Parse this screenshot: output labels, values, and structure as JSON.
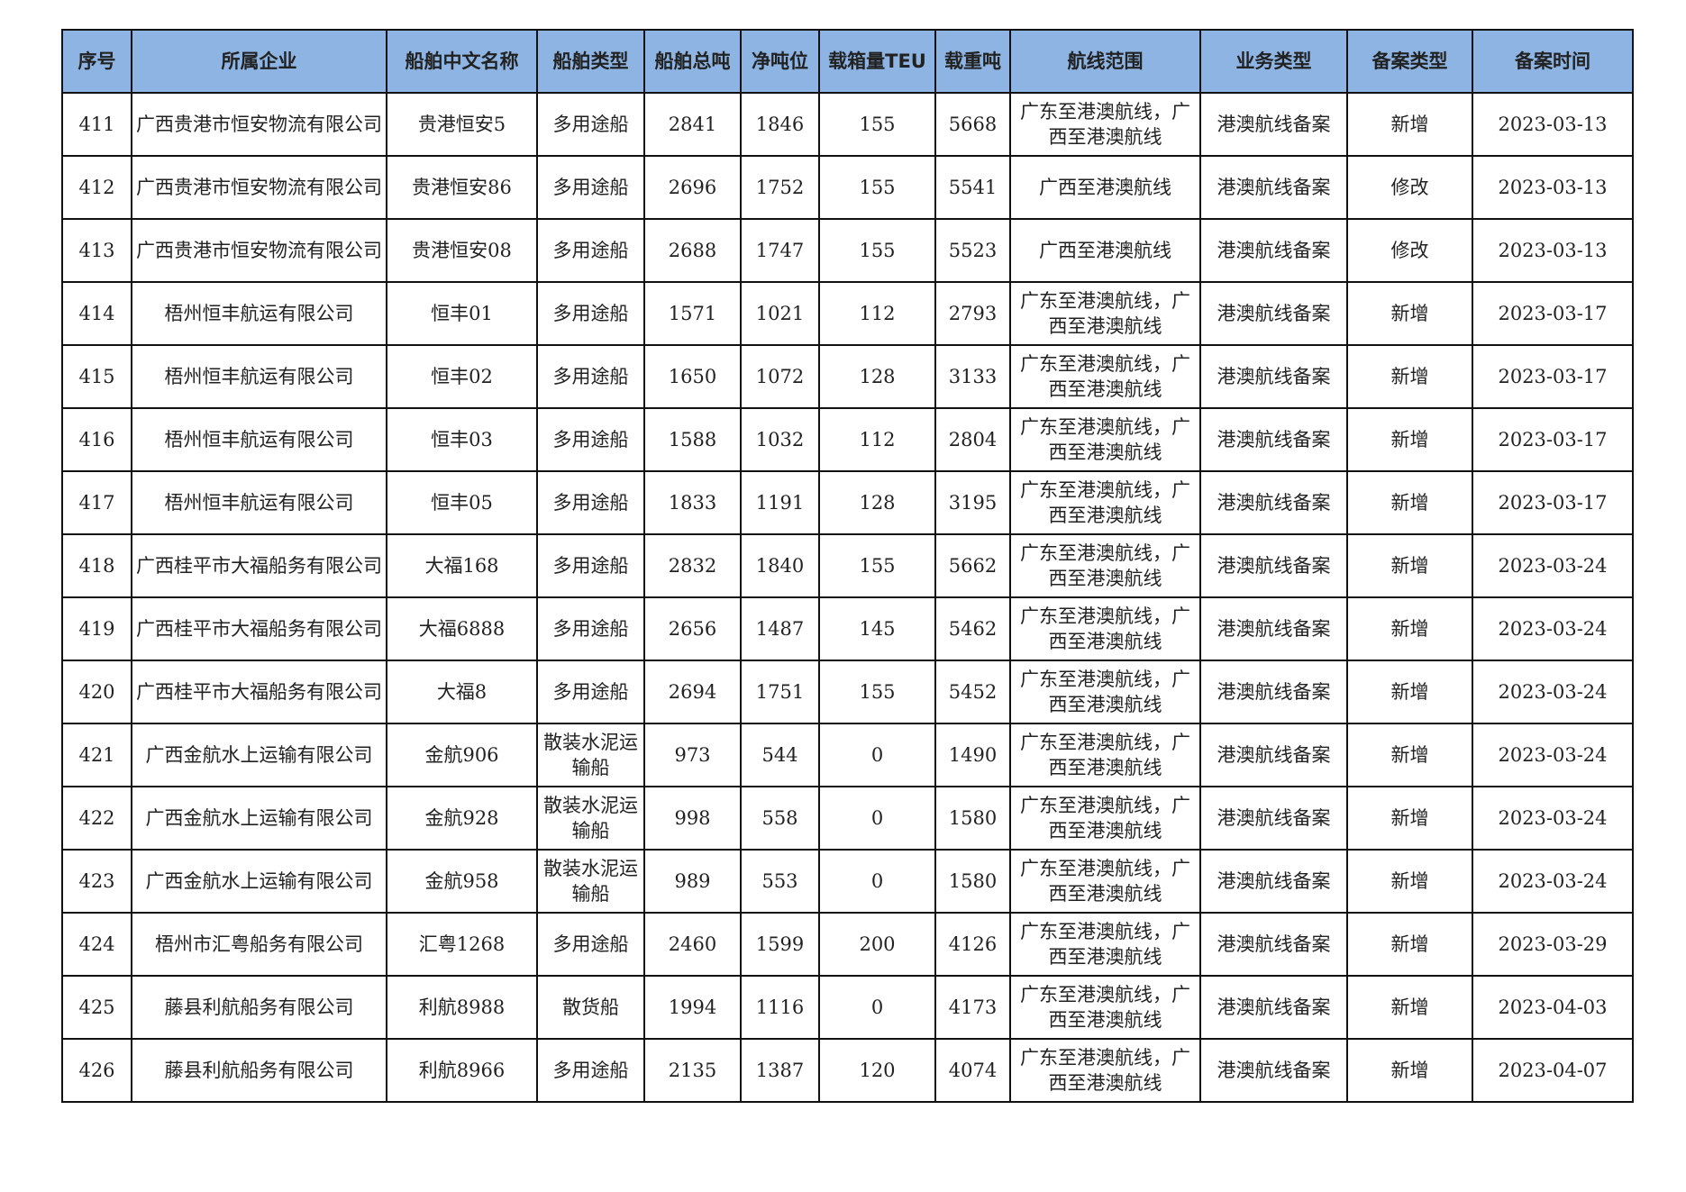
{
  "headers": [
    "序号",
    "所属企业",
    "船舶中文名称",
    "船舶类型",
    "船舶总吨",
    "净吨位",
    "载箱量TEU",
    "载重吨",
    "航线范围",
    "业务类型",
    "备案类型",
    "备案时间"
  ],
  "header_color": "#8db4e2",
  "rows": [
    [
      "411",
      "广西贵港市恒安物流有限公司",
      "贵港恒安5",
      "多用途船",
      "2841",
      "1846",
      "155",
      "5668",
      "广东至港澳航线，广西至港澳航线",
      "港澳航线备案",
      "新增",
      "2023-03-13"
    ],
    [
      "412",
      "广西贵港市恒安物流有限公司",
      "贵港恒安86",
      "多用途船",
      "2696",
      "1752",
      "155",
      "5541",
      "广西至港澳航线",
      "港澳航线备案",
      "修改",
      "2023-03-13"
    ],
    [
      "413",
      "广西贵港市恒安物流有限公司",
      "贵港恒安08",
      "多用途船",
      "2688",
      "1747",
      "155",
      "5523",
      "广西至港澳航线",
      "港澳航线备案",
      "修改",
      "2023-03-13"
    ],
    [
      "414",
      "梧州恒丰航运有限公司",
      "恒丰01",
      "多用途船",
      "1571",
      "1021",
      "112",
      "2793",
      "广东至港澳航线，广西至港澳航线",
      "港澳航线备案",
      "新增",
      "2023-03-17"
    ],
    [
      "415",
      "梧州恒丰航运有限公司",
      "恒丰02",
      "多用途船",
      "1650",
      "1072",
      "128",
      "3133",
      "广东至港澳航线，广西至港澳航线",
      "港澳航线备案",
      "新增",
      "2023-03-17"
    ],
    [
      "416",
      "梧州恒丰航运有限公司",
      "恒丰03",
      "多用途船",
      "1588",
      "1032",
      "112",
      "2804",
      "广东至港澳航线，广西至港澳航线",
      "港澳航线备案",
      "新增",
      "2023-03-17"
    ],
    [
      "417",
      "梧州恒丰航运有限公司",
      "恒丰05",
      "多用途船",
      "1833",
      "1191",
      "128",
      "3195",
      "广东至港澳航线，广西至港澳航线",
      "港澳航线备案",
      "新增",
      "2023-03-17"
    ],
    [
      "418",
      "广西桂平市大福船务有限公司",
      "大福168",
      "多用途船",
      "2832",
      "1840",
      "155",
      "5662",
      "广东至港澳航线，广西至港澳航线",
      "港澳航线备案",
      "新增",
      "2023-03-24"
    ],
    [
      "419",
      "广西桂平市大福船务有限公司",
      "大福6888",
      "多用途船",
      "2656",
      "1487",
      "145",
      "5462",
      "广东至港澳航线，广西至港澳航线",
      "港澳航线备案",
      "新增",
      "2023-03-24"
    ],
    [
      "420",
      "广西桂平市大福船务有限公司",
      "大福8",
      "多用途船",
      "2694",
      "1751",
      "155",
      "5452",
      "广东至港澳航线，广西至港澳航线",
      "港澳航线备案",
      "新增",
      "2023-03-24"
    ],
    [
      "421",
      "广西金航水上运输有限公司",
      "金航906",
      "散装水泥运输船",
      "973",
      "544",
      "0",
      "1490",
      "广东至港澳航线，广西至港澳航线",
      "港澳航线备案",
      "新增",
      "2023-03-24"
    ],
    [
      "422",
      "广西金航水上运输有限公司",
      "金航928",
      "散装水泥运输船",
      "998",
      "558",
      "0",
      "1580",
      "广东至港澳航线，广西至港澳航线",
      "港澳航线备案",
      "新增",
      "2023-03-24"
    ],
    [
      "423",
      "广西金航水上运输有限公司",
      "金航958",
      "散装水泥运输船",
      "989",
      "553",
      "0",
      "1580",
      "广东至港澳航线，广西至港澳航线",
      "港澳航线备案",
      "新增",
      "2023-03-24"
    ],
    [
      "424",
      "梧州市汇粤船务有限公司",
      "汇粤1268",
      "多用途船",
      "2460",
      "1599",
      "200",
      "4126",
      "广东至港澳航线，广西至港澳航线",
      "港澳航线备案",
      "新增",
      "2023-03-29"
    ],
    [
      "425",
      "藤县利航船务有限公司",
      "利航8988",
      "散货船",
      "1994",
      "1116",
      "0",
      "4173",
      "广东至港澳航线，广西至港澳航线",
      "港澳航线备案",
      "新增",
      "2023-04-03"
    ],
    [
      "426",
      "藤县利航船务有限公司",
      "利航8966",
      "多用途船",
      "2135",
      "1387",
      "120",
      "4074",
      "广东至港澳航线，广西至港澳航线",
      "港澳航线备案",
      "新增",
      "2023-04-07"
    ]
  ]
}
